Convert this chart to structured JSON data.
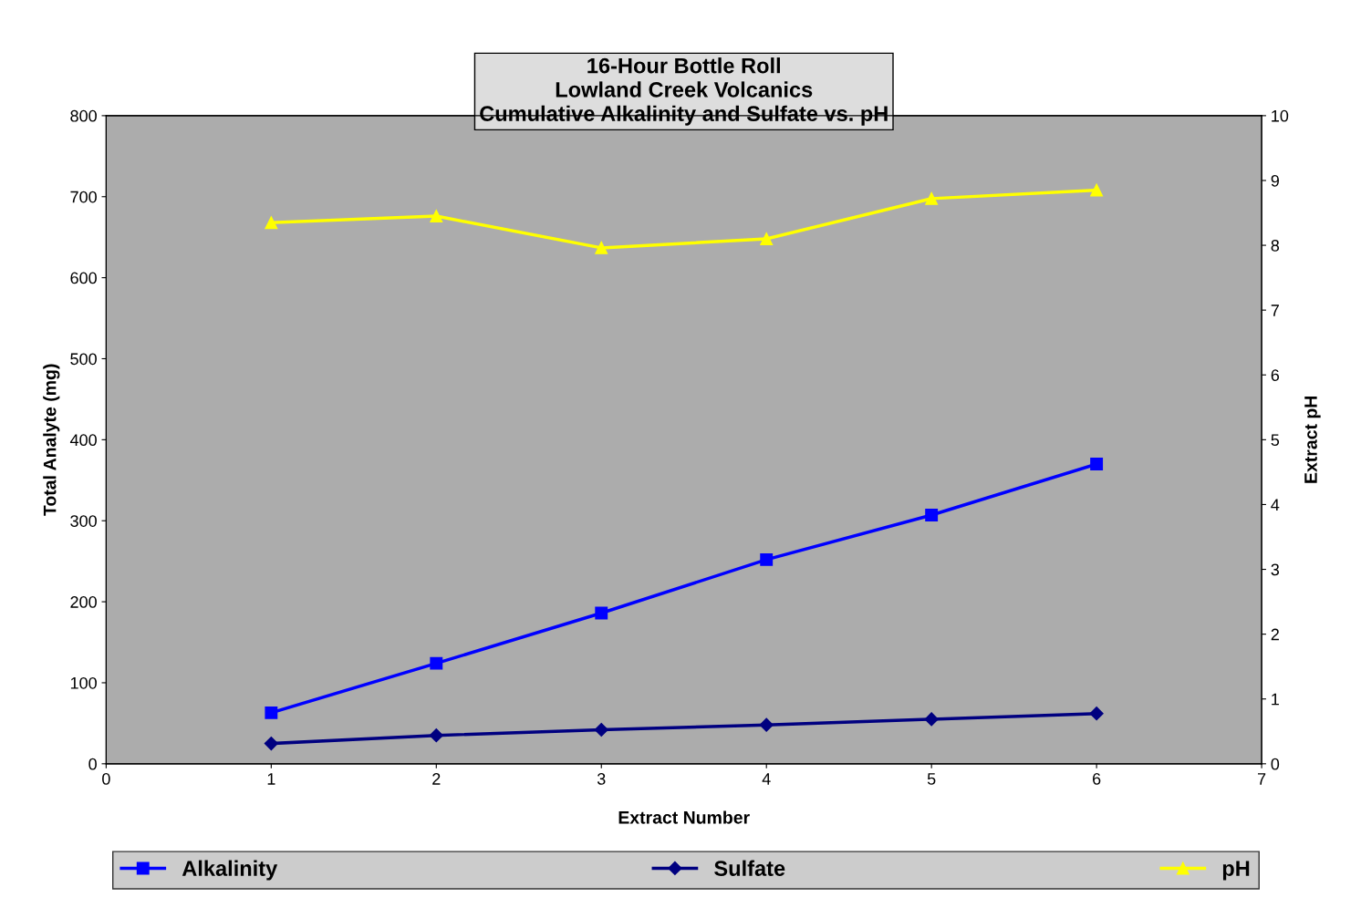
{
  "chart_data": {
    "type": "line",
    "title": "16-Hour Bottle Roll\nLowland Creek Volcanics\nCumulative Alkalinity and Sulfate vs. pH",
    "xlabel": "Extract Number",
    "ylabel": "Total Analyte (mg)",
    "y2label": "Extract pH",
    "x": [
      1,
      2,
      3,
      4,
      5,
      6
    ],
    "series": [
      {
        "name": "Alkalinity",
        "color": "#0000ff",
        "marker": "square",
        "values": [
          63,
          124,
          186,
          252,
          307,
          370
        ]
      },
      {
        "name": "Sulfate",
        "color": "#000080",
        "marker": "diamond",
        "values": [
          25,
          35,
          42,
          48,
          55,
          62
        ]
      },
      {
        "name": "pH",
        "color": "#ffff00",
        "marker": "triangle",
        "axis": "y2",
        "values": [
          8.35,
          8.45,
          7.96,
          8.1,
          8.72,
          8.85
        ]
      }
    ],
    "xlim": [
      0,
      7
    ],
    "xticks": [
      0,
      1,
      2,
      3,
      4,
      5,
      6,
      7
    ],
    "ylim": [
      0,
      800
    ],
    "yticks": [
      0,
      100,
      200,
      300,
      400,
      500,
      600,
      700,
      800
    ],
    "y2lim": [
      0,
      10
    ],
    "y2ticks": [
      0,
      1,
      2,
      3,
      4,
      5,
      6,
      7,
      8,
      9,
      10
    ],
    "legend": "bottom",
    "line_style": "solid"
  }
}
